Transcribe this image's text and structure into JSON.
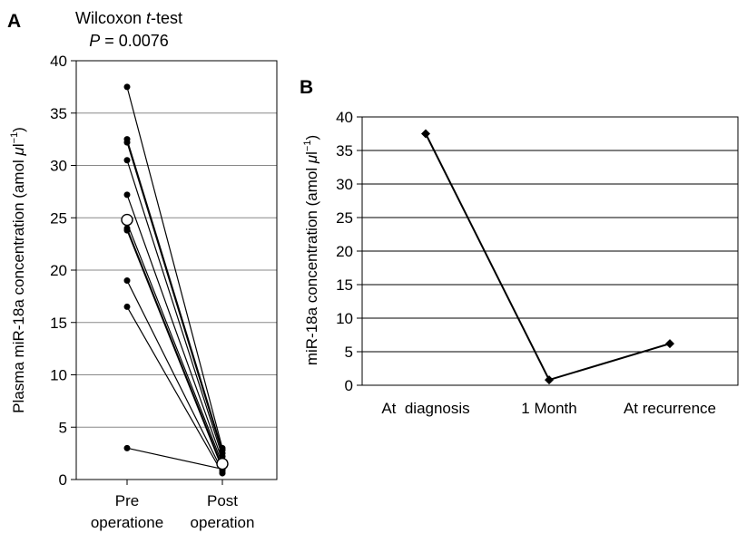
{
  "chart_data": [
    {
      "panel_label": "A",
      "type": "line",
      "title": "Wilcoxon t-test",
      "title_parts": [
        "Wilcoxon ",
        "t",
        "-test"
      ],
      "subtitle": "P = 0.0076",
      "subtitle_parts": [
        "P",
        " = 0.0076"
      ],
      "ylabel": "Plasma miR-18a concentration (amol μl⁻¹)",
      "ylabel_parts": [
        "Plasma miR-18a concentration (amol ",
        "μ",
        "l",
        "−1",
        ")"
      ],
      "ylim": [
        0,
        40
      ],
      "yticks": [
        0,
        5,
        10,
        15,
        20,
        25,
        30,
        35,
        40
      ],
      "grid": true,
      "categories": [
        {
          "line1": "Pre",
          "line2": "operatione"
        },
        {
          "line1": "Post",
          "line2": "operation"
        }
      ],
      "pairs": [
        [
          37.5,
          3.0
        ],
        [
          32.5,
          2.8
        ],
        [
          32.2,
          2.5
        ],
        [
          30.5,
          2.2
        ],
        [
          27.2,
          1.8
        ],
        [
          24.5,
          1.5
        ],
        [
          24.0,
          1.2
        ],
        [
          23.8,
          1.0
        ],
        [
          19.0,
          0.8
        ],
        [
          16.5,
          0.6
        ],
        [
          3.0,
          1.0
        ]
      ],
      "mean": [
        24.8,
        1.5
      ]
    },
    {
      "panel_label": "B",
      "type": "line",
      "ylabel": "miR-18a concentration (amol μl⁻¹)",
      "ylabel_parts": [
        "miR-18a concentration (amol ",
        "μ",
        "l",
        "−1",
        ")"
      ],
      "ylim": [
        0,
        40
      ],
      "yticks": [
        0,
        5,
        10,
        15,
        20,
        25,
        30,
        35,
        40
      ],
      "grid": true,
      "categories": [
        "At  diagnosis",
        "1 Month",
        "At recurrence"
      ],
      "values": [
        37.5,
        0.8,
        6.2
      ]
    }
  ]
}
